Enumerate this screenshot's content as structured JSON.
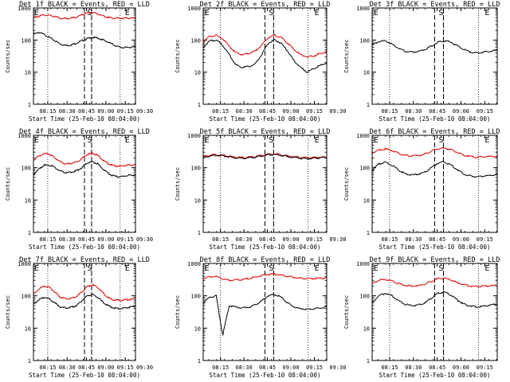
{
  "page": {
    "background": "#ffffff",
    "colors": {
      "events": "#000000",
      "lld": "#e00000",
      "frame": "#000000"
    }
  },
  "chart_data": [
    {
      "type": "line",
      "title": "Det 1f BLACK = Events, RED = LLD",
      "ylabel": "Counts/sec",
      "xlabel": "Start Time (25-Feb-10 08:04:00)",
      "yscale": "log",
      "ylim": [
        1,
        1000
      ],
      "yticks": [
        "1",
        "10",
        "100",
        "1000"
      ],
      "x_ticks": [
        "08:15",
        "08:30",
        "08:45",
        "09:00",
        "09:15",
        "09:30"
      ],
      "markers": [
        "E",
        "S",
        "E"
      ],
      "series": [
        {
          "color": "#000000",
          "values": [
            150,
            175,
            150,
            120,
            95,
            75,
            68,
            70,
            80,
            95,
            110,
            120,
            115,
            100,
            85,
            70,
            60,
            58,
            60,
            62
          ]
        },
        {
          "color": "#e00000",
          "values": [
            500,
            560,
            600,
            590,
            540,
            480,
            470,
            480,
            520,
            620,
            700,
            700,
            650,
            570,
            500,
            480,
            480,
            480,
            480,
            480
          ]
        }
      ]
    },
    {
      "type": "line",
      "title": "Det 2f BLACK = Events, RED = LLD",
      "ylabel": "Counts/sec",
      "xlabel": "Start Time (25-Feb-10 08:04:00)",
      "yscale": "log",
      "ylim": [
        1,
        1000
      ],
      "yticks": [
        "1",
        "10",
        "100",
        "1000"
      ],
      "x_ticks": [
        "08:15",
        "08:30",
        "08:45",
        "09:00",
        "09:15",
        "09:30"
      ],
      "markers": [
        "E",
        "S",
        "E"
      ],
      "series": [
        {
          "color": "#000000",
          "values": [
            60,
            95,
            100,
            70,
            35,
            17,
            14,
            15,
            18,
            35,
            80,
            100,
            80,
            45,
            22,
            14,
            10,
            13,
            16,
            20
          ]
        },
        {
          "color": "#e00000",
          "values": [
            90,
            130,
            140,
            110,
            65,
            40,
            35,
            38,
            45,
            70,
            120,
            140,
            120,
            80,
            50,
            35,
            30,
            32,
            38,
            45
          ]
        }
      ]
    },
    {
      "type": "line",
      "title": "Det 3f BLACK = Events, RED = LLD",
      "ylabel": "Counts/sec",
      "xlabel": "Start Time (25-Feb-10 08:04:00)",
      "yscale": "log",
      "ylim": [
        1,
        1000
      ],
      "yticks": [
        "1",
        "10",
        "100",
        "1000"
      ],
      "x_ticks": [
        "08:15",
        "08:30",
        "08:45",
        "09:00",
        "09:15",
        "09:30"
      ],
      "markers": [
        "E",
        "S",
        "E"
      ],
      "series": [
        {
          "color": "#000000",
          "values": [
            70,
            90,
            95,
            75,
            55,
            45,
            42,
            44,
            50,
            65,
            85,
            95,
            85,
            65,
            50,
            42,
            40,
            42,
            45,
            48
          ]
        }
      ]
    },
    {
      "type": "line",
      "title": "Det 4f BLACK = Events, RED = LLD",
      "ylabel": "Counts/sec",
      "xlabel": "Start Time (25-Feb-10 08:04:00)",
      "yscale": "log",
      "ylim": [
        1,
        1000
      ],
      "yticks": [
        "1",
        "10",
        "100",
        "1000"
      ],
      "x_ticks": [
        "08:15",
        "08:30",
        "08:45",
        "09:00",
        "09:15",
        "09:30"
      ],
      "markers": [
        "E",
        "S",
        "E"
      ],
      "series": [
        {
          "color": "#000000",
          "values": [
            60,
            90,
            120,
            120,
            100,
            80,
            70,
            72,
            80,
            100,
            140,
            150,
            130,
            90,
            65,
            55,
            52,
            55,
            58,
            60
          ]
        },
        {
          "color": "#e00000",
          "values": [
            170,
            230,
            270,
            260,
            200,
            150,
            130,
            135,
            150,
            190,
            260,
            280,
            240,
            170,
            130,
            115,
            110,
            115,
            120,
            125
          ]
        }
      ]
    },
    {
      "type": "line",
      "title": "Det 5f BLACK = Events, RED = LLD",
      "ylabel": "Counts/sec",
      "xlabel": "Start Time (25-Feb-10 08:04:00)",
      "yscale": "log",
      "ylim": [
        1,
        1000
      ],
      "yticks": [
        "1",
        "10",
        "100",
        "1000"
      ],
      "x_ticks": [
        "08:15",
        "08:30",
        "08:45",
        "09:00",
        "09:15",
        "09:30"
      ],
      "markers": [
        "E",
        "S",
        "E"
      ],
      "series": [
        {
          "color": "#e00000",
          "values": [
            220,
            240,
            250,
            240,
            225,
            210,
            205,
            210,
            220,
            240,
            260,
            265,
            250,
            230,
            215,
            205,
            200,
            205,
            210,
            215
          ]
        },
        {
          "color": "#000000",
          "values": [
            210,
            230,
            245,
            235,
            215,
            200,
            195,
            200,
            210,
            230,
            250,
            255,
            240,
            220,
            205,
            195,
            190,
            195,
            200,
            205
          ]
        }
      ]
    },
    {
      "type": "line",
      "title": "Det 6f BLACK = Events, RED = LLD",
      "ylabel": "Counts/sec",
      "xlabel": "Start Time (25-Feb-10 08:04:00)",
      "yscale": "log",
      "ylim": [
        1,
        1000
      ],
      "yticks": [
        "1",
        "10",
        "100",
        "1000"
      ],
      "x_ticks": [
        "08:15",
        "08:30",
        "08:45",
        "09:00",
        "09:15",
        "09:30"
      ],
      "markers": [
        "E",
        "S",
        "E"
      ],
      "series": [
        {
          "color": "#e00000",
          "values": [
            280,
            350,
            380,
            340,
            280,
            240,
            230,
            235,
            260,
            320,
            390,
            400,
            360,
            290,
            240,
            220,
            210,
            215,
            220,
            225
          ]
        },
        {
          "color": "#000000",
          "values": [
            80,
            130,
            150,
            120,
            85,
            65,
            60,
            63,
            72,
            100,
            140,
            150,
            120,
            85,
            62,
            55,
            52,
            55,
            58,
            62
          ]
        }
      ]
    },
    {
      "type": "line",
      "title": "Det 7f BLACK = Events, RED = LLD",
      "ylabel": "Counts/sec",
      "xlabel": "Start Time (25-Feb-10 08:04:00)",
      "yscale": "log",
      "ylim": [
        1,
        1000
      ],
      "yticks": [
        "1",
        "10",
        "100",
        "1000"
      ],
      "x_ticks": [
        "08:15",
        "08:30",
        "08:45",
        "09:00",
        "09:15",
        "09:30"
      ],
      "markers": [
        "E",
        "S",
        "E"
      ],
      "series": [
        {
          "color": "#e00000",
          "values": [
            110,
            160,
            200,
            180,
            130,
            90,
            80,
            82,
            95,
            130,
            190,
            220,
            180,
            120,
            85,
            75,
            72,
            75,
            78,
            80
          ]
        },
        {
          "color": "#000000",
          "values": [
            55,
            75,
            90,
            80,
            60,
            45,
            42,
            44,
            50,
            70,
            100,
            110,
            90,
            62,
            48,
            42,
            40,
            42,
            45,
            48
          ]
        }
      ]
    },
    {
      "type": "line",
      "title": "Det 8f BLACK = Events, RED = LLD",
      "ylabel": "Counts/sec",
      "xlabel": "Start Time (25-Feb-10 08:04:00)",
      "yscale": "log",
      "ylim": [
        1,
        1000
      ],
      "yticks": [
        "1",
        "10",
        "100",
        "1000"
      ],
      "x_ticks": [
        "08:15",
        "08:30",
        "08:45",
        "09:00",
        "09:15",
        "09:30"
      ],
      "markers": [
        "E",
        "S",
        "E"
      ],
      "series": [
        {
          "color": "#e00000",
          "values": [
            350,
            380,
            400,
            330,
            300,
            310,
            320,
            340,
            380,
            420,
            460,
            470,
            440,
            400,
            370,
            350,
            340,
            345,
            350,
            355
          ]
        },
        {
          "color": "#000000",
          "values": [
            60,
            90,
            100,
            6,
            50,
            45,
            42,
            44,
            52,
            70,
            100,
            110,
            90,
            60,
            45,
            40,
            38,
            40,
            42,
            45
          ]
        }
      ]
    },
    {
      "type": "line",
      "title": "Det 9f BLACK = Events, RED = LLD",
      "ylabel": "Counts/sec",
      "xlabel": "Start Time (25-Feb-10 08:04:00)",
      "yscale": "log",
      "ylim": [
        1,
        1000
      ],
      "yticks": [
        "1",
        "10",
        "100",
        "1000"
      ],
      "x_ticks": [
        "08:15",
        "08:30",
        "08:45",
        "09:00",
        "09:15",
        "09:30"
      ],
      "markers": [
        "E",
        "S",
        "E"
      ],
      "series": [
        {
          "color": "#e00000",
          "values": [
            240,
            300,
            320,
            290,
            240,
            210,
            200,
            205,
            230,
            280,
            340,
            350,
            310,
            250,
            215,
            200,
            195,
            200,
            205,
            210
          ]
        },
        {
          "color": "#000000",
          "values": [
            60,
            100,
            120,
            100,
            70,
            55,
            50,
            52,
            60,
            85,
            120,
            130,
            105,
            72,
            55,
            48,
            45,
            48,
            52,
            56
          ]
        }
      ]
    }
  ]
}
